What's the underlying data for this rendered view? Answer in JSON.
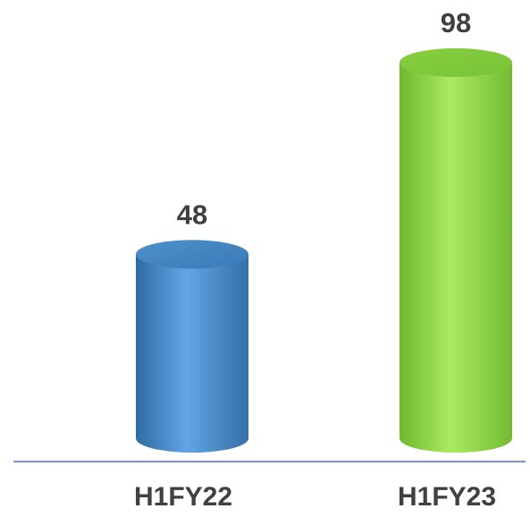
{
  "chart_data": {
    "type": "bar",
    "categories": [
      "H1FY22",
      "H1FY23"
    ],
    "values": [
      48,
      98
    ],
    "data_labels": [
      "48",
      "98"
    ],
    "title": "",
    "xlabel": "",
    "ylabel": "",
    "ylim": [
      0,
      98
    ],
    "grid": false,
    "bar_shape": "cylinder",
    "colors": [
      "#5b9bd5",
      "#92d050"
    ]
  }
}
